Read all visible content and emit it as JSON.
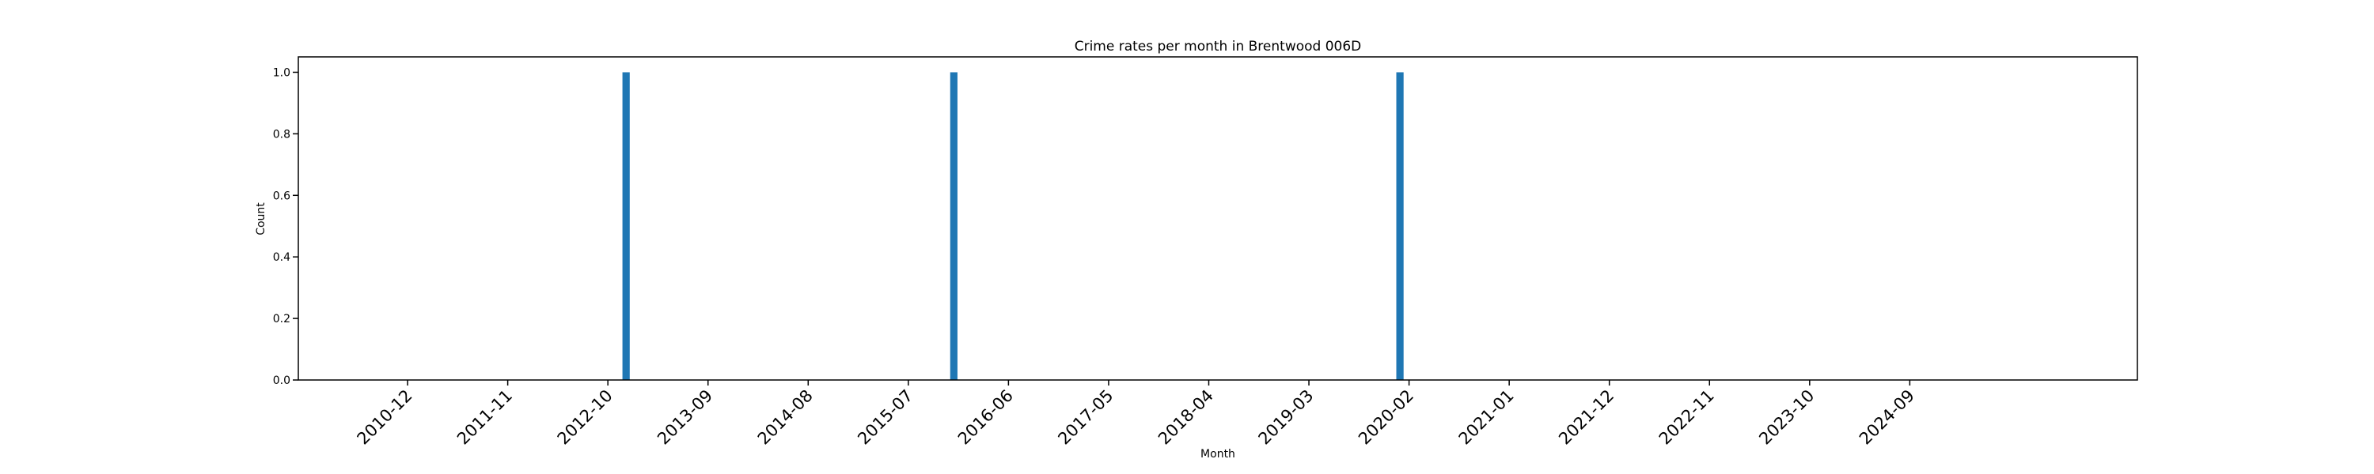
{
  "chart_data": {
    "type": "bar",
    "title": "Crime rates per month in Brentwood 006D",
    "xlabel": "Month",
    "ylabel": "Count",
    "ylim": [
      0,
      1.05
    ],
    "yticks": [
      0.0,
      0.2,
      0.4,
      0.6,
      0.8,
      1.0
    ],
    "ytick_labels": [
      "0.0",
      "0.2",
      "0.4",
      "0.6",
      "0.8",
      "1.0"
    ],
    "xlim": [
      "2009-12",
      "2026-10"
    ],
    "xtick_labels": [
      "2010-12",
      "2011-11",
      "2012-10",
      "2013-09",
      "2014-08",
      "2015-07",
      "2016-06",
      "2017-05",
      "2018-04",
      "2019-03",
      "2020-02",
      "2021-01",
      "2021-12",
      "2022-11",
      "2023-10",
      "2024-09"
    ],
    "bars": [
      {
        "month": "2012-12",
        "value": 1
      },
      {
        "month": "2015-12",
        "value": 1
      },
      {
        "month": "2020-01",
        "value": 1
      }
    ],
    "bar_color": "#1f77b4",
    "grid": false,
    "legend": "none"
  }
}
